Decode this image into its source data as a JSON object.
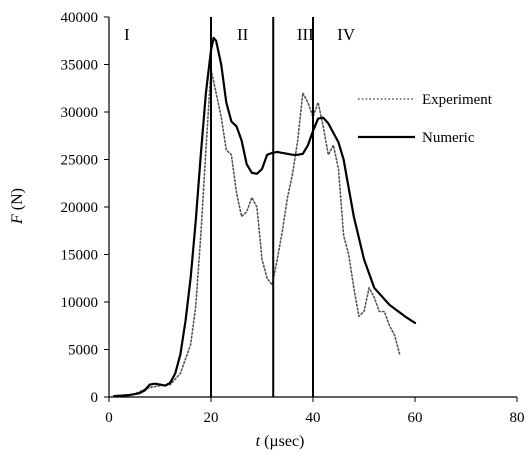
{
  "chart_data": {
    "type": "line",
    "xlabel_italic": "t",
    "xlabel_rest": " (µsec)",
    "ylabel_italic": "F",
    "ylabel_rest": " (N)",
    "xlim": [
      0,
      80
    ],
    "ylim": [
      0,
      40000
    ],
    "xticks": [
      0,
      20,
      40,
      60,
      80
    ],
    "yticks": [
      0,
      5000,
      10000,
      15000,
      20000,
      25000,
      30000,
      35000,
      40000
    ],
    "xtick_labels": [
      "0",
      "20",
      "40",
      "60",
      "80"
    ],
    "ytick_labels": [
      "0",
      "5000",
      "10000",
      "15000",
      "20000",
      "25000",
      "30000",
      "35000",
      "40000"
    ],
    "grid": false,
    "legend_position": "right",
    "regions": [
      {
        "label": "I",
        "x": 3.5
      },
      {
        "label": "II",
        "x": 26.2
      },
      {
        "label": "III",
        "x": 38.5
      },
      {
        "label": "IV",
        "x": 46.5
      }
    ],
    "vlines": [
      20,
      32.2,
      40
    ],
    "series": [
      {
        "name": "Experiment",
        "style": "dotted",
        "color": "#555555",
        "x": [
          1,
          5,
          7,
          8,
          10,
          12,
          14,
          16,
          17,
          18,
          19,
          20,
          21,
          22,
          23,
          24,
          25,
          26,
          27,
          28,
          29,
          30,
          31,
          32,
          33,
          34,
          35,
          36,
          37,
          38,
          39,
          40,
          41,
          42,
          43,
          44,
          45,
          46,
          47,
          48,
          49,
          50,
          51,
          52,
          53,
          54,
          55,
          56,
          57
        ],
        "y": [
          100,
          300,
          800,
          1000,
          1200,
          1300,
          2500,
          5500,
          9500,
          17000,
          26000,
          34500,
          32000,
          29500,
          26000,
          25500,
          21500,
          19000,
          19500,
          21000,
          20000,
          14500,
          12500,
          11800,
          14500,
          17500,
          21000,
          23500,
          27000,
          32000,
          31000,
          29500,
          31000,
          28500,
          25500,
          26500,
          24000,
          17000,
          15000,
          11500,
          8500,
          9000,
          11500,
          10500,
          9000,
          9000,
          7500,
          6500,
          4500
        ]
      },
      {
        "name": "Numeric",
        "style": "solid",
        "color": "#000000",
        "x": [
          1,
          4,
          6,
          7,
          8,
          9,
          10,
          11,
          12,
          13,
          14,
          15,
          16,
          17,
          18,
          19,
          20,
          20.5,
          21,
          22,
          23,
          24,
          25,
          26,
          27,
          28,
          29,
          30,
          31,
          32,
          33,
          34,
          35,
          36,
          37,
          38,
          39,
          40,
          41,
          42,
          43,
          44,
          45,
          46,
          47,
          48,
          50,
          52,
          55,
          58,
          60
        ],
        "y": [
          100,
          200,
          400,
          700,
          1300,
          1400,
          1300,
          1200,
          1500,
          2500,
          4500,
          8000,
          12500,
          18500,
          25500,
          32000,
          36500,
          37800,
          37500,
          35000,
          31000,
          29000,
          28500,
          27000,
          24500,
          23600,
          23500,
          24000,
          25500,
          25700,
          25800,
          25700,
          25600,
          25500,
          25500,
          25600,
          26500,
          28000,
          29300,
          29400,
          28800,
          27800,
          26800,
          25000,
          22000,
          19000,
          14500,
          11500,
          9700,
          8500,
          7800
        ]
      }
    ]
  }
}
